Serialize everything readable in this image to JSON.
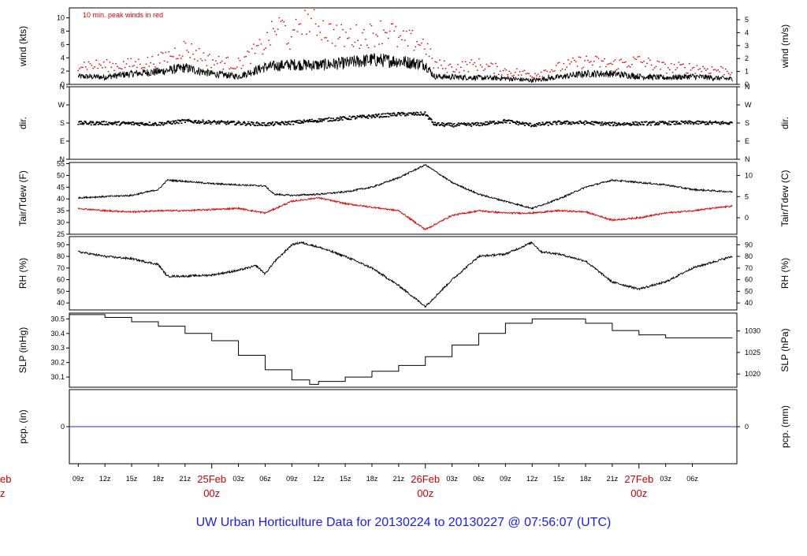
{
  "footer": {
    "title": "UW Urban Horticulture Data for 20130224  to  20130227 @ 07:56:07  (UTC)"
  },
  "colors": {
    "series_black": "#000000",
    "series_red": "#dd0000",
    "pcp_line": "#2a2add",
    "date_label": "#cc0000",
    "footer": "#1a1aff"
  },
  "x_axis": {
    "hour_ticks": [
      {
        "label": "09z",
        "h": 0
      },
      {
        "label": "12z",
        "h": 3
      },
      {
        "label": "15z",
        "h": 6
      },
      {
        "label": "18z",
        "h": 9
      },
      {
        "label": "21z",
        "h": 12
      },
      {
        "label": "03z",
        "h": 18
      },
      {
        "label": "06z",
        "h": 21
      },
      {
        "label": "09z",
        "h": 24
      },
      {
        "label": "12z",
        "h": 27
      },
      {
        "label": "15z",
        "h": 30
      },
      {
        "label": "18z",
        "h": 33
      },
      {
        "label": "21z",
        "h": 36
      },
      {
        "label": "03z",
        "h": 42
      },
      {
        "label": "06z",
        "h": 45
      },
      {
        "label": "09z",
        "h": 48
      },
      {
        "label": "12z",
        "h": 51
      },
      {
        "label": "15z",
        "h": 54
      },
      {
        "label": "18z",
        "h": 57
      },
      {
        "label": "21z",
        "h": 60
      },
      {
        "label": "03z",
        "h": 66
      },
      {
        "label": "06z",
        "h": 69
      }
    ],
    "date_ticks": [
      {
        "date": "25Feb",
        "hour": "00z",
        "h": 15
      },
      {
        "date": "26Feb",
        "hour": "00z",
        "h": 39
      },
      {
        "date": "27Feb",
        "hour": "00z",
        "h": 63
      }
    ],
    "cut_label_left_top": "eb",
    "cut_label_left_bottom": "z",
    "range_hours": [
      -1,
      74
    ]
  },
  "chart_data": [
    {
      "type": "line",
      "name": "wind",
      "ylabel_left": "wind (kts)",
      "ylabel_right": "wind (m/s)",
      "annotation": "10 min. peak winds in red",
      "ylim": [
        0,
        11.5
      ],
      "left_ticks": [
        "0",
        "2",
        "4",
        "6",
        "8",
        "10"
      ],
      "left_tick_values": [
        0,
        2,
        4,
        6,
        8,
        10
      ],
      "right_ticks": [
        "0",
        "1",
        "2",
        "3",
        "4",
        "5"
      ],
      "right_tick_values_kts": [
        0,
        1.944,
        3.888,
        5.832,
        7.776,
        9.72
      ],
      "series": [
        {
          "style": "line",
          "color": "#000000",
          "x": [
            0,
            3,
            6,
            9,
            12,
            15,
            18,
            21,
            24,
            27,
            30,
            33,
            36,
            39,
            40,
            42,
            45,
            48,
            51,
            54,
            57,
            60,
            63,
            66,
            69,
            73.5
          ],
          "y": [
            1.2,
            1.1,
            1.6,
            1.9,
            2.5,
            1.6,
            1.2,
            2.6,
            3.0,
            2.9,
            3.2,
            3.7,
            3.5,
            3.0,
            1.2,
            1.1,
            1.0,
            0.9,
            0.6,
            1.1,
            1.6,
            1.6,
            1.2,
            1.0,
            1.2,
            0.8
          ]
        },
        {
          "style": "points",
          "color": "#dd0000",
          "x": [
            0,
            3,
            6,
            9,
            12,
            15,
            18,
            21,
            22,
            23,
            24,
            25,
            27,
            28,
            30,
            33,
            35,
            36,
            38,
            39,
            40,
            42,
            45,
            48,
            51,
            54,
            57,
            60,
            63,
            66,
            69,
            73.5
          ],
          "y": [
            3,
            2.8,
            3.0,
            3.5,
            5.5,
            3.5,
            3.0,
            6.0,
            8.0,
            9.0,
            6.0,
            10.0,
            9.0,
            8.0,
            7.0,
            7.5,
            8.5,
            6.5,
            6.5,
            6.0,
            3.0,
            2.5,
            3.0,
            2.0,
            1.5,
            2.5,
            3.5,
            3.0,
            3.5,
            2.5,
            2.5,
            2.0
          ]
        }
      ]
    },
    {
      "type": "scatter",
      "name": "direction",
      "ylabel_left": "dir.",
      "ylabel_right": "dir.",
      "ylim": [
        0,
        360
      ],
      "left_ticks": [
        "N",
        "E",
        "S",
        "W",
        "N"
      ],
      "left_tick_values": [
        0,
        90,
        180,
        270,
        360
      ],
      "right_ticks": [
        "N",
        "E",
        "S",
        "W",
        "N"
      ],
      "right_tick_values": [
        0,
        90,
        180,
        270,
        360
      ],
      "series": [
        {
          "style": "points",
          "color": "#000000",
          "x": [
            0,
            3,
            6,
            9,
            12,
            15,
            18,
            21,
            24,
            27,
            30,
            33,
            36,
            39,
            40,
            42,
            45,
            48,
            51,
            54,
            57,
            60,
            63,
            66,
            69,
            73.5
          ],
          "y": [
            180,
            180,
            178,
            176,
            190,
            184,
            180,
            174,
            182,
            194,
            204,
            214,
            224,
            226,
            175,
            170,
            174,
            190,
            170,
            182,
            182,
            175,
            178,
            180,
            182,
            180
          ]
        }
      ]
    },
    {
      "type": "line",
      "name": "temperature",
      "ylabel_left": "Tair/Tdew (F)",
      "ylabel_right": "Tair/Tdew (C)",
      "ylim": [
        25,
        55.5
      ],
      "left_ticks": [
        "25",
        "30",
        "35",
        "40",
        "45",
        "50",
        "55"
      ],
      "left_tick_values": [
        25,
        30,
        35,
        40,
        45,
        50,
        55
      ],
      "right_ticks": [
        "0",
        "5",
        "10"
      ],
      "right_tick_values_f": [
        32,
        41,
        50
      ],
      "series": [
        {
          "style": "line",
          "color": "#000000",
          "x": [
            0,
            3,
            6,
            9,
            10,
            12,
            15,
            18,
            21,
            22,
            24,
            27,
            30,
            33,
            36,
            39,
            42,
            45,
            48,
            51,
            54,
            57,
            60,
            63,
            66,
            69,
            73.5
          ],
          "y": [
            40.5,
            41,
            41.5,
            44,
            48,
            47.5,
            46.5,
            46,
            45.5,
            42,
            41.5,
            42,
            43,
            45,
            49,
            54.5,
            47,
            42,
            39,
            36,
            40,
            45,
            48,
            47,
            46,
            44,
            43
          ]
        },
        {
          "style": "line",
          "color": "#dd0000",
          "x": [
            0,
            3,
            6,
            9,
            12,
            15,
            18,
            21,
            24,
            27,
            30,
            33,
            36,
            39,
            42,
            45,
            48,
            51,
            54,
            57,
            60,
            63,
            66,
            69,
            73.5
          ],
          "y": [
            36,
            35,
            34.5,
            35,
            35,
            35.5,
            36,
            34,
            39,
            40.5,
            38,
            36.5,
            35,
            27,
            33,
            35,
            34,
            34,
            35,
            34.5,
            31,
            32,
            34,
            35,
            37
          ]
        }
      ]
    },
    {
      "type": "line",
      "name": "humidity",
      "ylabel_left": "RH (%)",
      "ylabel_right": "RH (%)",
      "ylim": [
        34,
        97
      ],
      "left_ticks": [
        "40",
        "50",
        "60",
        "70",
        "80",
        "90"
      ],
      "left_tick_values": [
        40,
        50,
        60,
        70,
        80,
        90
      ],
      "right_ticks": [
        "40",
        "50",
        "60",
        "70",
        "80",
        "90"
      ],
      "right_tick_values": [
        40,
        50,
        60,
        70,
        80,
        90
      ],
      "series": [
        {
          "style": "line",
          "color": "#000000",
          "x": [
            0,
            3,
            6,
            9,
            10,
            12,
            15,
            18,
            20,
            21,
            22,
            24,
            25,
            27,
            30,
            33,
            36,
            39,
            42,
            45,
            48,
            51,
            52,
            54,
            57,
            60,
            63,
            66,
            69,
            73.5
          ],
          "y": [
            84,
            80,
            78,
            73,
            63,
            63,
            64,
            68,
            72,
            65,
            75,
            90,
            92,
            88,
            80,
            70,
            55,
            37,
            60,
            80,
            82,
            92,
            84,
            82,
            76,
            58,
            52,
            58,
            70,
            80
          ]
        }
      ]
    },
    {
      "type": "line",
      "name": "sea-level-pressure",
      "ylabel_left": "SLP (inHg)",
      "ylabel_right": "SLP (hPa)",
      "ylim": [
        30.03,
        30.54
      ],
      "left_ticks": [
        "30.1",
        "30.2",
        "30.3",
        "30.4",
        "30.5"
      ],
      "left_tick_values": [
        30.1,
        30.2,
        30.3,
        30.4,
        30.5
      ],
      "right_ticks": [
        "1020",
        "1025",
        "1030"
      ],
      "right_tick_values_inhg": [
        30.121,
        30.269,
        30.417
      ],
      "series": [
        {
          "style": "step",
          "color": "#000000",
          "x": [
            -1,
            3,
            6,
            9,
            12,
            15,
            18,
            21,
            24,
            26,
            27,
            30,
            33,
            36,
            39,
            42,
            45,
            48,
            51,
            54,
            57,
            60,
            63,
            66,
            69,
            73.5
          ],
          "y": [
            30.53,
            30.51,
            30.48,
            30.45,
            30.4,
            30.35,
            30.25,
            30.15,
            30.08,
            30.05,
            30.07,
            30.1,
            30.14,
            30.18,
            30.24,
            30.32,
            30.4,
            30.47,
            30.5,
            30.5,
            30.47,
            30.42,
            30.39,
            30.37,
            30.37,
            30.37
          ]
        }
      ]
    },
    {
      "type": "line",
      "name": "precipitation",
      "ylabel_left": "pcp. (in)",
      "ylabel_right": "pcp. (mm)",
      "ylim": [
        -1,
        1
      ],
      "left_ticks": [
        "0"
      ],
      "left_tick_values": [
        0
      ],
      "right_ticks": [
        "0"
      ],
      "right_tick_values": [
        0
      ],
      "series": [
        {
          "style": "line",
          "color": "#2a2add",
          "x": [
            -1,
            74
          ],
          "y": [
            0,
            0
          ]
        }
      ]
    }
  ]
}
